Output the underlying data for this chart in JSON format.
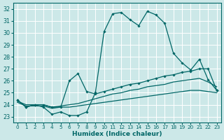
{
  "xlabel": "Humidex (Indice chaleur)",
  "background_color": "#cce8e8",
  "grid_color": "#b8d8d8",
  "line_color": "#006666",
  "xlim": [
    -0.5,
    23.5
  ],
  "ylim": [
    22.5,
    32.5
  ],
  "xticks": [
    0,
    1,
    2,
    3,
    4,
    5,
    6,
    7,
    8,
    9,
    10,
    11,
    12,
    13,
    14,
    15,
    16,
    17,
    18,
    19,
    20,
    21,
    22,
    23
  ],
  "yticks": [
    23,
    24,
    25,
    26,
    27,
    28,
    29,
    30,
    31,
    32
  ],
  "series": [
    {
      "x": [
        0,
        1,
        2,
        3,
        4,
        5,
        6,
        7,
        8,
        9,
        10,
        11,
        12,
        13,
        14,
        15,
        16,
        17,
        18,
        19,
        20,
        21,
        22,
        23
      ],
      "y": [
        24.4,
        23.8,
        24.0,
        23.8,
        23.2,
        23.4,
        23.1,
        23.1,
        23.4,
        25.0,
        30.1,
        31.6,
        31.7,
        31.1,
        30.6,
        31.8,
        31.5,
        30.8,
        28.3,
        27.5,
        26.9,
        27.8,
        26.1,
        25.2
      ],
      "marker": true,
      "linewidth": 0.9
    },
    {
      "x": [
        0,
        1,
        2,
        3,
        4,
        5,
        6,
        7,
        8,
        9,
        10,
        11,
        12,
        13,
        14,
        15,
        16,
        17,
        18,
        19,
        20,
        21,
        22,
        23
      ],
      "y": [
        24.4,
        23.8,
        24.0,
        24.0,
        23.8,
        23.8,
        26.0,
        26.6,
        25.1,
        24.9,
        25.1,
        25.3,
        25.5,
        25.7,
        25.8,
        26.0,
        26.2,
        26.4,
        26.5,
        26.7,
        26.8,
        27.0,
        27.0,
        25.2
      ],
      "marker": true,
      "linewidth": 0.9
    },
    {
      "x": [
        0,
        1,
        2,
        3,
        4,
        5,
        6,
        7,
        8,
        9,
        10,
        11,
        12,
        13,
        14,
        15,
        16,
        17,
        18,
        19,
        20,
        21,
        22,
        23
      ],
      "y": [
        24.3,
        24.0,
        24.0,
        24.0,
        23.8,
        23.9,
        24.0,
        24.1,
        24.3,
        24.5,
        24.7,
        24.9,
        25.0,
        25.2,
        25.3,
        25.5,
        25.6,
        25.7,
        25.9,
        26.0,
        26.1,
        26.2,
        25.9,
        25.5
      ],
      "marker": false,
      "linewidth": 0.9
    },
    {
      "x": [
        0,
        1,
        2,
        3,
        4,
        5,
        6,
        7,
        8,
        9,
        10,
        11,
        12,
        13,
        14,
        15,
        16,
        17,
        18,
        19,
        20,
        21,
        22,
        23
      ],
      "y": [
        24.2,
        23.9,
        23.9,
        23.9,
        23.7,
        23.8,
        23.8,
        23.9,
        24.0,
        24.1,
        24.2,
        24.3,
        24.4,
        24.5,
        24.6,
        24.7,
        24.8,
        24.9,
        25.0,
        25.1,
        25.2,
        25.2,
        25.1,
        25.0
      ],
      "marker": false,
      "linewidth": 0.9
    }
  ]
}
